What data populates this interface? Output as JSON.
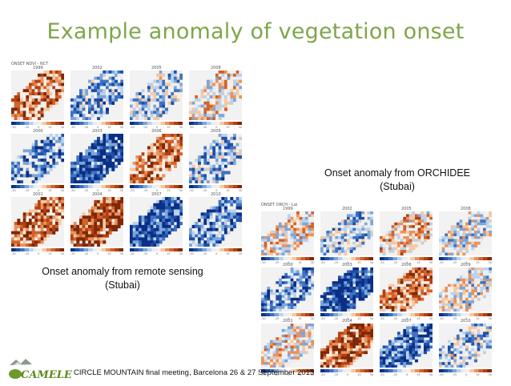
{
  "title": "Example anomaly of vegetation onset",
  "left_figure": {
    "header": "ONSET   NDVI - NCT",
    "years": [
      "1999",
      "2002",
      "2005",
      "2008",
      "2000",
      "2003",
      "2006",
      "2009",
      "2001",
      "2004",
      "2007",
      "2010"
    ],
    "colorbar_ticks": [
      "-30",
      "-15",
      "0",
      "15",
      "30"
    ]
  },
  "right_figure": {
    "header": "ONSET   ORCH - Lai",
    "years": [
      "1999",
      "2002",
      "2005",
      "2008",
      "2000",
      "2003",
      "2006",
      "2009",
      "2001",
      "2004",
      "2007",
      "2010"
    ],
    "colorbar_ticks": [
      "-30",
      "-15",
      "0",
      "15",
      "30"
    ]
  },
  "caption_right_line1": "Onset anomaly from ORCHIDEE",
  "caption_right_line2": "(Stubai)",
  "caption_left_line1": "Onset anomaly from remote sensing",
  "caption_left_line2": "(Stubai)",
  "footer": "CIRCLE MOUNTAIN final meeting, Barcelona 26 & 27 September 2013",
  "logo_text": "CAMELEON",
  "colors": {
    "title": "#7fa64a",
    "negative": "#1f4fa8",
    "positive": "#b5400f"
  }
}
